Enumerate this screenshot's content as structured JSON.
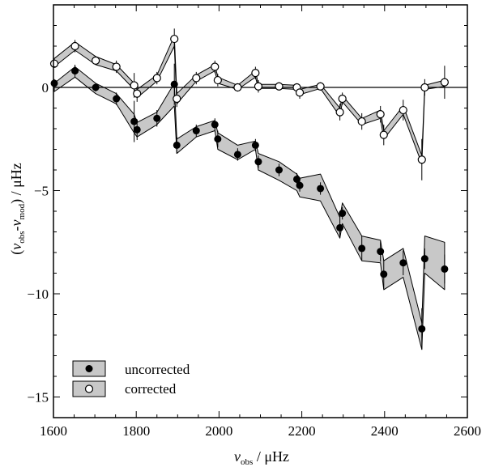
{
  "chart_data": {
    "type": "scatter",
    "title": "",
    "xlabel_var": "ν",
    "xlabel_sub": "obs",
    "xlabel_unit": " / μHz",
    "ylabel_open": "(",
    "ylabel_var1": "ν",
    "ylabel_sub1": "obs",
    "ylabel_dash": "-",
    "ylabel_var2": "ν",
    "ylabel_sub2": "mod",
    "ylabel_close": ")",
    "ylabel_unit": " / μHz",
    "xlim": [
      1600,
      2600
    ],
    "ylim": [
      -16,
      4
    ],
    "xticks": [
      1600,
      1800,
      2000,
      2200,
      2400,
      2600
    ],
    "xtick_labels": [
      "1600",
      "1800",
      "2000",
      "2200",
      "2400",
      "2600"
    ],
    "yticks": [
      0,
      -5,
      -10,
      -15
    ],
    "ytick_labels": [
      "0",
      "−5",
      "−10",
      "−15"
    ],
    "zero_line": 0,
    "legend": {
      "position": "bottom-left",
      "entries": [
        "uncorrected",
        "corrected"
      ]
    },
    "series": [
      {
        "name": "uncorrected",
        "marker": "filled",
        "x": [
          1602,
          1652,
          1702,
          1752,
          1795,
          1802,
          1850,
          1892,
          1898,
          1945,
          1990,
          1997,
          2045,
          2088,
          2095,
          2145,
          2188,
          2195,
          2245,
          2292,
          2298,
          2345,
          2390,
          2398,
          2445,
          2490,
          2497,
          2545
        ],
        "y": [
          0.2,
          0.8,
          0.0,
          -0.55,
          -1.65,
          -2.05,
          -1.5,
          0.15,
          -2.8,
          -2.1,
          -1.8,
          -2.5,
          -3.25,
          -2.8,
          -3.6,
          -4.0,
          -4.45,
          -4.75,
          -4.9,
          -6.8,
          -6.1,
          -7.8,
          -7.95,
          -9.05,
          -8.5,
          -11.7,
          -8.3,
          -8.8
        ],
        "err": [
          0.2,
          0.3,
          0.2,
          0.3,
          1.0,
          0.5,
          0.4,
          1.0,
          0.4,
          0.3,
          0.3,
          0.4,
          0.3,
          0.3,
          0.3,
          0.3,
          0.3,
          0.3,
          0.3,
          0.5,
          0.3,
          0.6,
          0.5,
          0.7,
          0.6,
          1.0,
          0.5,
          0.7
        ],
        "band_lower": [
          -0.2,
          0.5,
          -0.3,
          -0.8,
          -2.2,
          -2.4,
          -1.8,
          -0.9,
          -3.2,
          -2.4,
          -2.1,
          -3.0,
          -3.5,
          -3.0,
          -4.0,
          -4.5,
          -5.0,
          -5.3,
          -5.5,
          -7.3,
          -6.6,
          -8.4,
          -8.5,
          -9.8,
          -9.2,
          -12.7,
          -9.0,
          -9.8
        ],
        "band_upper": [
          0.2,
          1.0,
          0.2,
          -0.3,
          -1.3,
          -1.7,
          -1.2,
          0.2,
          -2.5,
          -1.9,
          -1.6,
          -2.2,
          -2.8,
          -2.6,
          -3.2,
          -3.6,
          -4.2,
          -4.4,
          -4.2,
          -6.3,
          -5.6,
          -7.2,
          -7.4,
          -8.4,
          -7.8,
          -11.4,
          -7.2,
          -7.5
        ]
      },
      {
        "name": "corrected",
        "marker": "open",
        "x": [
          1602,
          1652,
          1702,
          1752,
          1795,
          1802,
          1850,
          1892,
          1898,
          1945,
          1990,
          1997,
          2045,
          2088,
          2095,
          2145,
          2188,
          2195,
          2245,
          2292,
          2298,
          2345,
          2390,
          2398,
          2445,
          2490,
          2497,
          2545
        ],
        "y": [
          1.15,
          2.0,
          1.3,
          1.0,
          0.1,
          -0.3,
          0.45,
          2.35,
          -0.55,
          0.45,
          1.0,
          0.35,
          0.0,
          0.7,
          0.05,
          0.05,
          0.0,
          -0.25,
          0.05,
          -1.2,
          -0.55,
          -1.65,
          -1.3,
          -2.3,
          -1.1,
          -3.5,
          0.0,
          0.25
        ],
        "err": [
          0.2,
          0.3,
          0.2,
          0.3,
          0.6,
          0.4,
          0.3,
          0.5,
          0.4,
          0.3,
          0.3,
          0.3,
          0.2,
          0.3,
          0.3,
          0.2,
          0.2,
          0.3,
          0.2,
          0.4,
          0.3,
          0.4,
          0.4,
          0.5,
          0.5,
          1.0,
          0.4,
          0.8
        ],
        "band_lower": [
          1.0,
          1.8,
          1.1,
          0.8,
          -0.1,
          -0.5,
          0.3,
          2.0,
          -0.8,
          0.3,
          0.8,
          0.2,
          -0.1,
          0.5,
          -0.05,
          -0.05,
          -0.1,
          -0.35,
          -0.05,
          -1.4,
          -0.7,
          -1.8,
          -1.5,
          -2.5,
          -1.3,
          -3.7,
          -0.1,
          0.05
        ],
        "band_upper": [
          1.4,
          2.2,
          1.5,
          1.1,
          0.2,
          -0.1,
          0.6,
          2.5,
          -0.3,
          0.6,
          1.1,
          0.5,
          0.1,
          0.8,
          0.15,
          0.15,
          0.1,
          -0.1,
          0.15,
          -1.0,
          -0.4,
          -1.5,
          -1.1,
          -2.1,
          -0.9,
          -3.3,
          0.1,
          0.35
        ]
      }
    ]
  }
}
